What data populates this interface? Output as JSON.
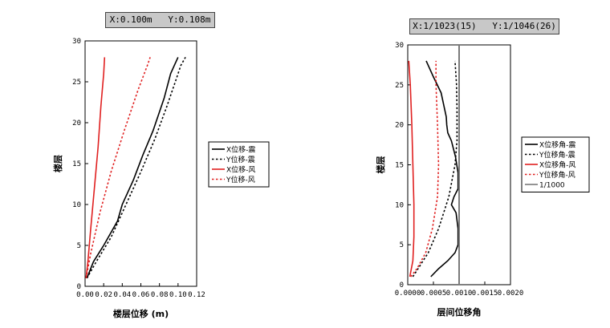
{
  "summary_left": "X:0.100m   Y:0.108m",
  "summary_right": "X:1/1023(15)   Y:1/1046(26)",
  "colors": {
    "black": "#000000",
    "red": "#e02020",
    "gray": "#7a7a7a"
  },
  "chart_data": [
    {
      "type": "line",
      "xlabel": "楼层位移 (m)",
      "ylabel": "楼层",
      "xlim": [
        0,
        0.12
      ],
      "ylim": [
        0,
        30
      ],
      "xticks": [
        "0.00",
        "0.02",
        "0.04",
        "0.06",
        "0.08",
        "0.10",
        "0.12"
      ],
      "yticks": [
        "0",
        "5",
        "10",
        "15",
        "20",
        "25",
        "30"
      ],
      "legend_position": "right",
      "series": [
        {
          "name": "X位移-震",
          "style": "solid",
          "color": "#000000",
          "points": [
            [
              0.002,
              1
            ],
            [
              0.009,
              3
            ],
            [
              0.02,
              5
            ],
            [
              0.035,
              8
            ],
            [
              0.04,
              10
            ],
            [
              0.052,
              13
            ],
            [
              0.062,
              16
            ],
            [
              0.073,
              19
            ],
            [
              0.085,
              23
            ],
            [
              0.092,
              26
            ],
            [
              0.096,
              27
            ],
            [
              0.1,
              28
            ]
          ]
        },
        {
          "name": "Y位移-震",
          "style": "dotted",
          "color": "#000000",
          "points": [
            [
              0.002,
              1
            ],
            [
              0.012,
              3
            ],
            [
              0.028,
              6
            ],
            [
              0.044,
              10
            ],
            [
              0.06,
              14
            ],
            [
              0.075,
              18
            ],
            [
              0.088,
              22
            ],
            [
              0.097,
              25
            ],
            [
              0.103,
              27
            ],
            [
              0.108,
              28
            ]
          ]
        },
        {
          "name": "X位移-风",
          "style": "solid",
          "color": "#e02020",
          "points": [
            [
              0.001,
              1
            ],
            [
              0.003,
              3
            ],
            [
              0.006,
              7
            ],
            [
              0.01,
              12
            ],
            [
              0.014,
              17
            ],
            [
              0.017,
              22
            ],
            [
              0.02,
              26
            ],
            [
              0.021,
              28
            ]
          ]
        },
        {
          "name": "Y位移-风",
          "style": "dotted",
          "color": "#e02020",
          "points": [
            [
              0.001,
              1
            ],
            [
              0.006,
              4
            ],
            [
              0.016,
              9
            ],
            [
              0.028,
              14
            ],
            [
              0.042,
              19
            ],
            [
              0.057,
              24
            ],
            [
              0.067,
              27
            ],
            [
              0.07,
              28
            ]
          ]
        }
      ]
    },
    {
      "type": "line",
      "xlabel": "层间位移角",
      "ylabel": "楼层",
      "xlim": [
        0,
        0.002
      ],
      "ylim": [
        0,
        30
      ],
      "xticks": [
        "0.0000",
        "0.0005",
        "0.0010",
        "0.0015",
        "0.0020"
      ],
      "yticks": [
        "0",
        "5",
        "10",
        "15",
        "20",
        "25",
        "30"
      ],
      "legend_position": "right",
      "series": [
        {
          "name": "X位移角-震",
          "style": "solid",
          "color": "#000000",
          "points": [
            [
              0.00045,
              1
            ],
            [
              0.0006,
              2
            ],
            [
              0.00078,
              3
            ],
            [
              0.00092,
              4
            ],
            [
              0.00098,
              5
            ],
            [
              0.00098,
              7
            ],
            [
              0.00094,
              9
            ],
            [
              0.00085,
              10
            ],
            [
              0.0009,
              11
            ],
            [
              0.00098,
              12
            ],
            [
              0.00098,
              14
            ],
            [
              0.00093,
              16
            ],
            [
              0.00085,
              18
            ],
            [
              0.00078,
              19
            ],
            [
              0.00076,
              20
            ],
            [
              0.00075,
              21
            ],
            [
              0.00065,
              24
            ],
            [
              0.0005,
              26
            ],
            [
              0.00036,
              28
            ]
          ]
        },
        {
          "name": "Y位移角-震",
          "style": "dotted",
          "color": "#000000",
          "points": [
            [
              0.0001,
              1
            ],
            [
              0.0002,
              2
            ],
            [
              0.0004,
              4
            ],
            [
              0.0006,
              7
            ],
            [
              0.0008,
              11
            ],
            [
              0.00092,
              15
            ],
            [
              0.00096,
              18
            ],
            [
              0.00096,
              22
            ],
            [
              0.00095,
              25
            ],
            [
              0.00092,
              28
            ]
          ]
        },
        {
          "name": "X位移角-风",
          "style": "solid",
          "color": "#e02020",
          "points": [
            [
              4e-05,
              1
            ],
            [
              0.0001,
              3
            ],
            [
              0.00012,
              6
            ],
            [
              0.00012,
              10
            ],
            [
              0.0001,
              15
            ],
            [
              8e-05,
              20
            ],
            [
              5e-05,
              25
            ],
            [
              2e-05,
              28
            ]
          ]
        },
        {
          "name": "Y位移角-风",
          "style": "dotted",
          "color": "#e02020",
          "points": [
            [
              6e-05,
              1
            ],
            [
              0.00018,
              2
            ],
            [
              0.00035,
              4
            ],
            [
              0.00048,
              7
            ],
            [
              0.00058,
              11
            ],
            [
              0.0006,
              15
            ],
            [
              0.00058,
              20
            ],
            [
              0.00055,
              25
            ],
            [
              0.00055,
              28
            ]
          ]
        },
        {
          "name": "1/1000",
          "style": "solid",
          "color": "#7a7a7a",
          "points": [
            [
              0.001,
              0
            ],
            [
              0.001,
              30
            ]
          ]
        }
      ]
    }
  ]
}
